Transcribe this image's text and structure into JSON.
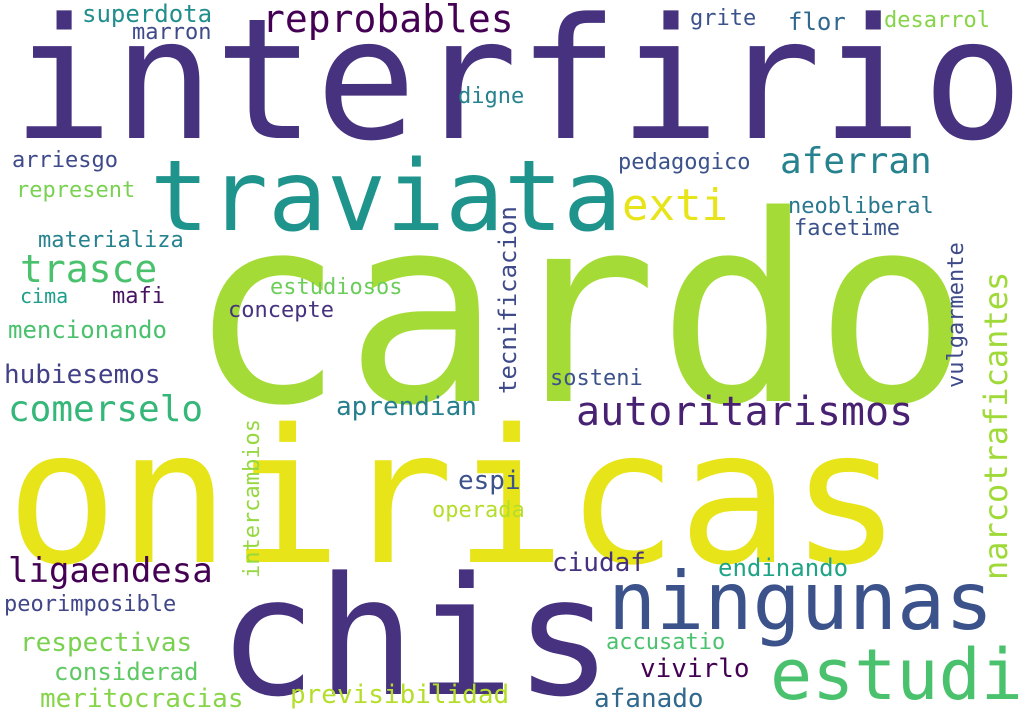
{
  "words": [
    {
      "text": "interfirio",
      "color": "#46327e"
    },
    {
      "text": "cardo",
      "color": "#a5db36"
    },
    {
      "text": "oniricas",
      "color": "#e7e419"
    },
    {
      "text": "chis",
      "color": "#46327e"
    },
    {
      "text": "traviata",
      "color": "#1f948c"
    },
    {
      "text": "ningunas",
      "color": "#3b528b"
    },
    {
      "text": "estudi",
      "color": "#4ac16d"
    },
    {
      "text": "narcotraficantes",
      "color": "#a0da39"
    },
    {
      "text": "autoritarismos",
      "color": "#482173"
    },
    {
      "text": "reprobables",
      "color": "#440154"
    },
    {
      "text": "comerselo",
      "color": "#35b779"
    },
    {
      "text": "exti",
      "color": "#e7e419"
    },
    {
      "text": "aferran",
      "color": "#26828e"
    },
    {
      "text": "trasce",
      "color": "#4ac16d"
    },
    {
      "text": "ligaendesa",
      "color": "#440154"
    },
    {
      "text": "superdota",
      "color": "#218e8d"
    },
    {
      "text": "marron",
      "color": "#3e4a89"
    },
    {
      "text": "grite",
      "color": "#3b528b"
    },
    {
      "text": "flor",
      "color": "#31688e"
    },
    {
      "text": "desarrol",
      "color": "#86d549"
    },
    {
      "text": "digne",
      "color": "#26828e"
    },
    {
      "text": "arriesgo",
      "color": "#3e4a89"
    },
    {
      "text": "pedagogico",
      "color": "#3b528b"
    },
    {
      "text": "represent",
      "color": "#7ad151"
    },
    {
      "text": "neobliberal",
      "color": "#2a788e"
    },
    {
      "text": "materializa",
      "color": "#26828e"
    },
    {
      "text": "facetime",
      "color": "#3b528b"
    },
    {
      "text": "tecnificacion",
      "color": "#3e4a89"
    },
    {
      "text": "vulgarmente",
      "color": "#3e4a89"
    },
    {
      "text": "estudiosos",
      "color": "#6ccd5a"
    },
    {
      "text": "cima",
      "color": "#1f9e89"
    },
    {
      "text": "mafi",
      "color": "#471365"
    },
    {
      "text": "concepte",
      "color": "#46327e"
    },
    {
      "text": "mencionando",
      "color": "#4ac16d"
    },
    {
      "text": "hubiesemos",
      "color": "#424086"
    },
    {
      "text": "sosteni",
      "color": "#3b528b"
    },
    {
      "text": "aprendian",
      "color": "#277f8e"
    },
    {
      "text": "intercambios",
      "color": "#95d840"
    },
    {
      "text": "espi",
      "color": "#3b528b"
    },
    {
      "text": "operada",
      "color": "#b5de2b"
    },
    {
      "text": "ciudaf",
      "color": "#46327e"
    },
    {
      "text": "endinando",
      "color": "#20a486"
    },
    {
      "text": "peorimposible",
      "color": "#404688"
    },
    {
      "text": "respectivas",
      "color": "#7ad151"
    },
    {
      "text": "accusatio",
      "color": "#4ac16d"
    },
    {
      "text": "considerad",
      "color": "#5ec962"
    },
    {
      "text": "vivirlo",
      "color": "#440154"
    },
    {
      "text": "meritocracias",
      "color": "#86d549"
    },
    {
      "text": "previsibilidad",
      "color": "#b5de2b"
    },
    {
      "text": "afanado",
      "color": "#31688e"
    },
    {
      "text": "",
      "color": "#e7e419"
    },
    {
      "text": "",
      "color": "#e7e419"
    },
    {
      "text": "",
      "color": "#46327e"
    },
    {
      "text": "",
      "color": "#46327e"
    },
    {
      "text": "",
      "color": "#a5db36"
    }
  ]
}
